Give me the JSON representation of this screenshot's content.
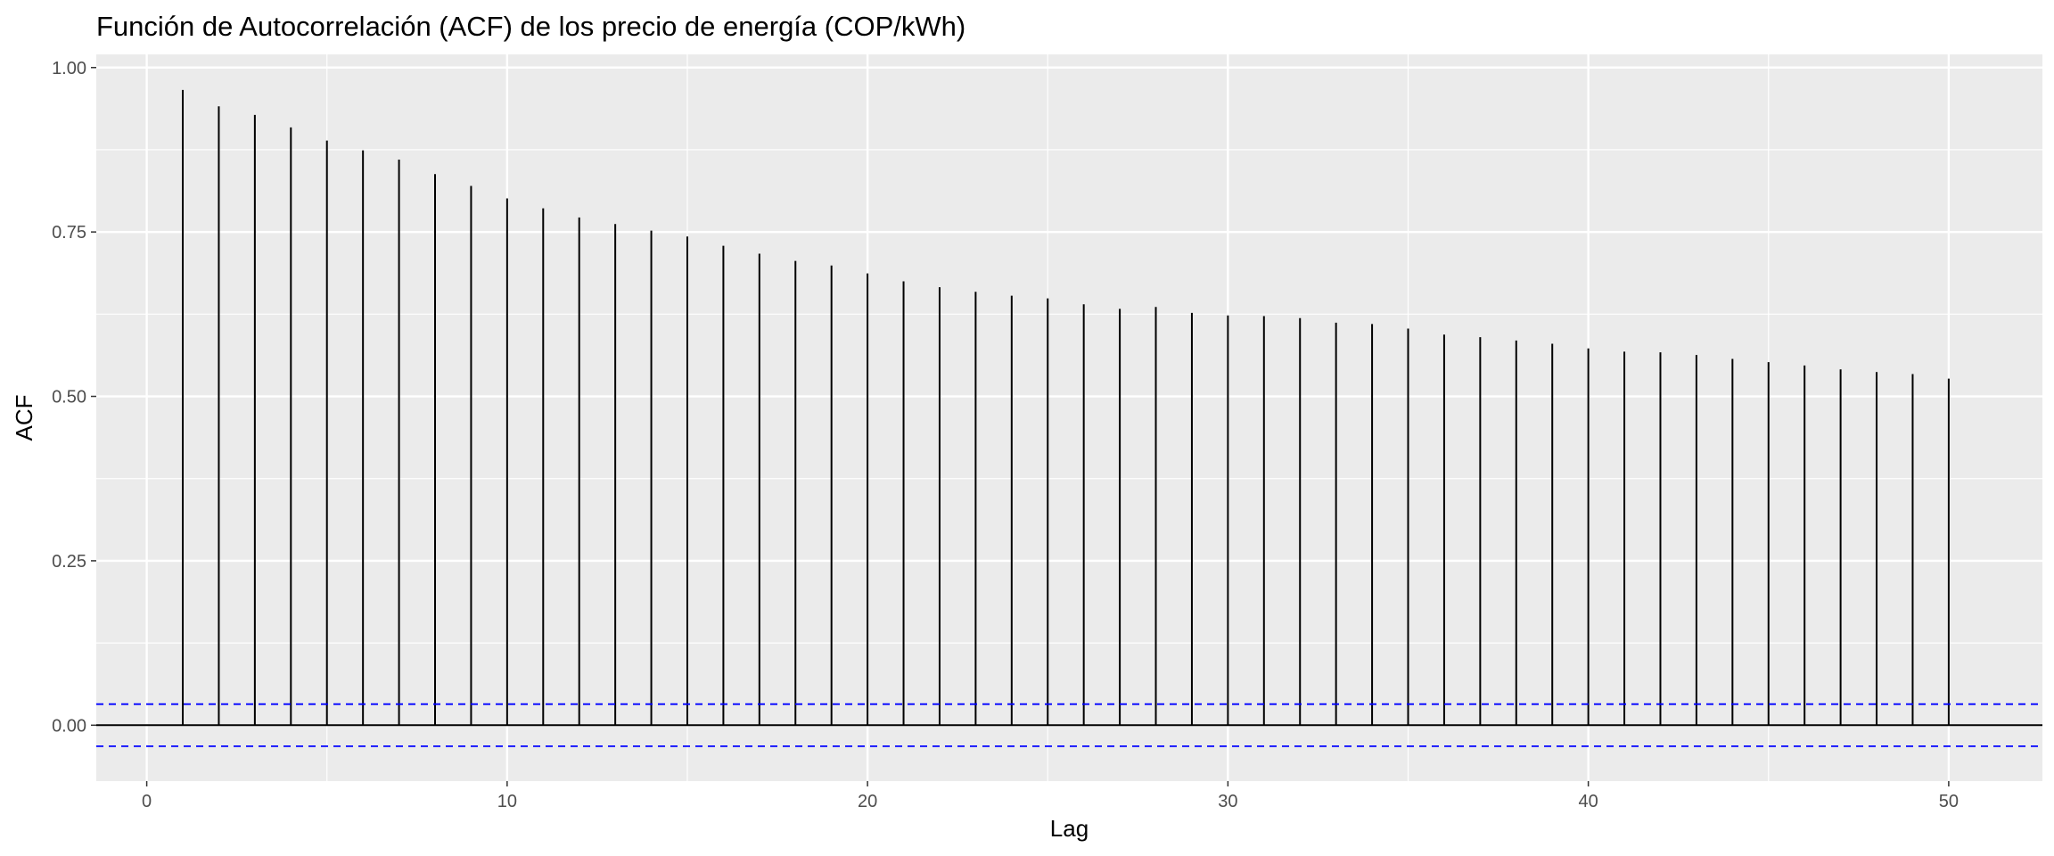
{
  "chart_data": {
    "type": "bar",
    "title": "Función de Autocorrelación (ACF) de los precio de energía (COP/kWh)",
    "xlabel": "Lag",
    "ylabel": "ACF",
    "xlim": [
      -1.4,
      52.6
    ],
    "ylim": [
      -0.085,
      1.02
    ],
    "x_ticks": [
      0,
      10,
      20,
      30,
      40,
      50
    ],
    "x_tick_labels": [
      "0",
      "10",
      "20",
      "30",
      "40",
      "50"
    ],
    "y_ticks": [
      0,
      0.25,
      0.5,
      0.75,
      1.0
    ],
    "y_tick_labels": [
      "0.00",
      "0.25",
      "0.50",
      "0.75",
      "1.00"
    ],
    "grid": true,
    "background": "#ebebeb",
    "grid_color": "#ffffff",
    "bar_color": "#000000",
    "confidence_line_color": "#0000ff",
    "confidence_bound": 0.032,
    "series": [
      {
        "x": [
          1,
          2,
          3,
          4,
          5,
          6,
          7,
          8,
          9,
          10,
          11,
          12,
          13,
          14,
          15,
          16,
          17,
          18,
          19,
          20,
          21,
          22,
          23,
          24,
          25,
          26,
          27,
          28,
          29,
          30,
          31,
          32,
          33,
          34,
          35,
          36,
          37,
          38,
          39,
          40,
          41,
          42,
          43,
          44,
          45,
          46,
          47,
          48,
          49,
          50
        ],
        "values": [
          0.966,
          0.941,
          0.928,
          0.909,
          0.889,
          0.874,
          0.86,
          0.838,
          0.82,
          0.801,
          0.786,
          0.772,
          0.762,
          0.752,
          0.743,
          0.729,
          0.717,
          0.706,
          0.699,
          0.687,
          0.675,
          0.666,
          0.659,
          0.653,
          0.649,
          0.64,
          0.633,
          0.636,
          0.627,
          0.623,
          0.622,
          0.619,
          0.612,
          0.61,
          0.603,
          0.594,
          0.59,
          0.585,
          0.58,
          0.573,
          0.568,
          0.567,
          0.563,
          0.557,
          0.552,
          0.547,
          0.541,
          0.537,
          0.534,
          0.527
        ]
      }
    ]
  }
}
